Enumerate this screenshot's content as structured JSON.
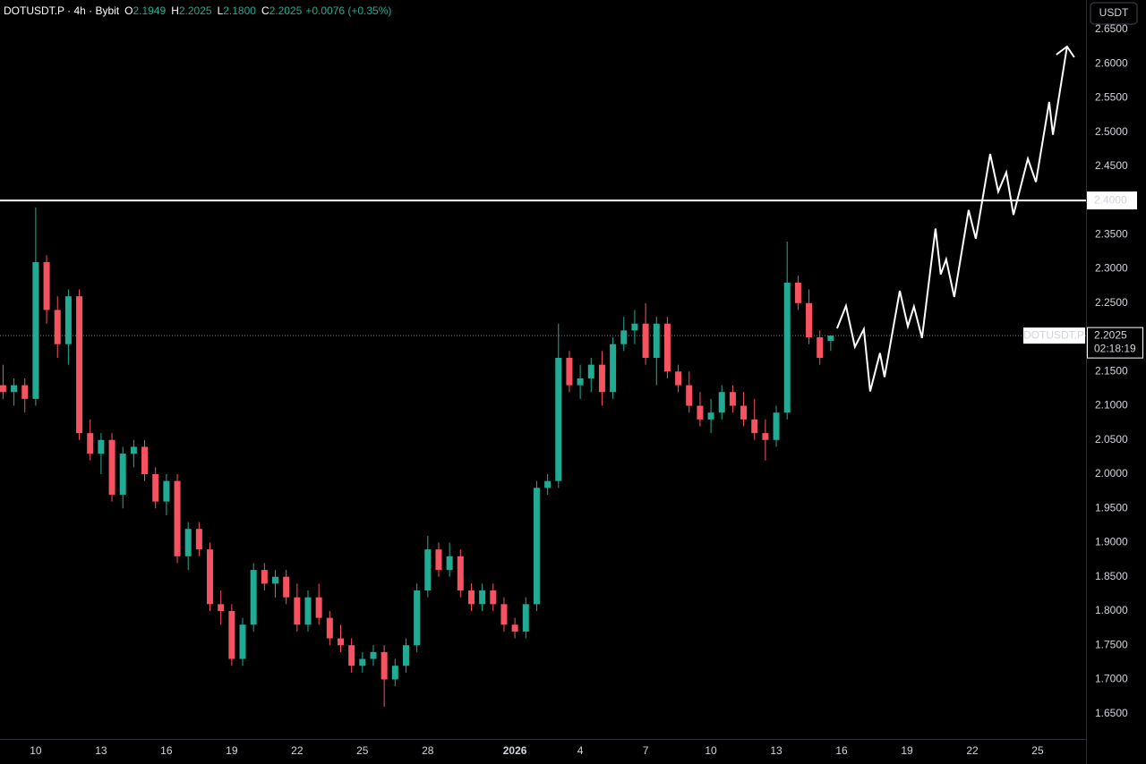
{
  "chart_data": {
    "type": "candlestick",
    "header": {
      "symbol": "DOTUSDT.P · 4h · Bybit",
      "ohlc": [
        {
          "key": "O",
          "text": "2.1949"
        },
        {
          "key": "H",
          "text": "2.2025"
        },
        {
          "key": "L",
          "text": "2.1800"
        },
        {
          "key": "C",
          "text": "2.2025"
        }
      ],
      "change": "+0.0076 (+0.35%)"
    },
    "currency_button": "USDT",
    "up_color": "#22ab94",
    "down_color": "#f7525f",
    "candles": {
      "x": [
        8.5,
        9,
        9.5,
        10,
        10.5,
        11,
        11.5,
        12,
        12.5,
        13,
        13.5,
        14,
        14.5,
        15,
        15.5,
        16,
        16.5,
        17,
        17.5,
        18,
        18.5,
        19,
        19.5,
        20,
        20.5,
        21,
        21.5,
        22,
        22.5,
        23,
        23.5,
        24,
        24.5,
        25,
        25.5,
        26,
        26.5,
        27,
        27.5,
        28,
        28.5,
        29,
        29.5,
        30,
        30.5,
        31,
        31.5,
        32,
        32.5,
        33,
        33.5,
        34,
        34.5,
        35,
        35.5,
        36,
        36.5,
        37,
        37.5,
        38,
        38.5,
        39,
        39.5,
        40,
        40.5,
        41,
        41.5,
        42,
        42.5,
        43,
        43.5,
        44,
        44.5,
        45,
        45.5,
        46,
        46.5
      ],
      "open": [
        2.13,
        2.12,
        2.13,
        2.11,
        2.31,
        2.24,
        2.19,
        2.26,
        2.06,
        2.03,
        2.05,
        1.97,
        2.03,
        2.04,
        2.0,
        1.96,
        1.99,
        1.88,
        1.92,
        1.89,
        1.81,
        1.8,
        1.73,
        1.78,
        1.86,
        1.84,
        1.85,
        1.82,
        1.78,
        1.82,
        1.79,
        1.76,
        1.75,
        1.72,
        1.73,
        1.74,
        1.7,
        1.72,
        1.75,
        1.83,
        1.89,
        1.86,
        1.88,
        1.83,
        1.81,
        1.83,
        1.81,
        1.78,
        1.77,
        1.81,
        1.98,
        1.99,
        2.17,
        2.13,
        2.14,
        2.16,
        2.12,
        2.19,
        2.21,
        2.22,
        2.17,
        2.22,
        2.15,
        2.13,
        2.1,
        2.08,
        2.09,
        2.12,
        2.1,
        2.08,
        2.06,
        2.05,
        2.09,
        2.28,
        2.25,
        2.2,
        2.1949
      ],
      "high": [
        2.16,
        2.14,
        2.14,
        2.39,
        2.32,
        2.26,
        2.27,
        2.27,
        2.08,
        2.06,
        2.06,
        2.04,
        2.05,
        2.05,
        2.01,
        2.0,
        2.0,
        1.93,
        1.93,
        1.9,
        1.83,
        1.81,
        1.79,
        1.87,
        1.87,
        1.86,
        1.86,
        1.84,
        1.83,
        1.84,
        1.8,
        1.78,
        1.76,
        1.74,
        1.75,
        1.75,
        1.73,
        1.76,
        1.84,
        1.91,
        1.9,
        1.9,
        1.89,
        1.84,
        1.84,
        1.84,
        1.82,
        1.79,
        1.82,
        1.99,
        2.0,
        2.22,
        2.18,
        2.16,
        2.17,
        2.18,
        2.2,
        2.23,
        2.24,
        2.25,
        2.23,
        2.23,
        2.16,
        2.15,
        2.12,
        2.11,
        2.13,
        2.13,
        2.12,
        2.11,
        2.08,
        2.1,
        2.34,
        2.29,
        2.27,
        2.21,
        2.2025
      ],
      "low": [
        2.11,
        2.1,
        2.09,
        2.1,
        2.22,
        2.17,
        2.16,
        2.05,
        2.02,
        2.0,
        1.96,
        1.95,
        2.01,
        1.99,
        1.95,
        1.94,
        1.87,
        1.86,
        1.88,
        1.8,
        1.78,
        1.72,
        1.72,
        1.77,
        1.83,
        1.82,
        1.81,
        1.77,
        1.77,
        1.78,
        1.75,
        1.74,
        1.71,
        1.71,
        1.72,
        1.66,
        1.69,
        1.71,
        1.74,
        1.82,
        1.85,
        1.85,
        1.82,
        1.8,
        1.8,
        1.8,
        1.77,
        1.76,
        1.76,
        1.8,
        1.97,
        1.98,
        2.12,
        2.11,
        2.12,
        2.1,
        2.11,
        2.18,
        2.19,
        2.16,
        2.13,
        2.14,
        2.12,
        2.09,
        2.07,
        2.06,
        2.08,
        2.09,
        2.07,
        2.05,
        2.02,
        2.04,
        2.08,
        2.24,
        2.19,
        2.16,
        2.18
      ],
      "close": [
        2.12,
        2.13,
        2.11,
        2.31,
        2.24,
        2.19,
        2.26,
        2.06,
        2.03,
        2.05,
        1.97,
        2.03,
        2.04,
        2.0,
        1.96,
        1.99,
        1.88,
        1.92,
        1.89,
        1.81,
        1.8,
        1.73,
        1.78,
        1.86,
        1.84,
        1.85,
        1.82,
        1.78,
        1.82,
        1.79,
        1.76,
        1.75,
        1.72,
        1.73,
        1.74,
        1.7,
        1.72,
        1.75,
        1.83,
        1.89,
        1.86,
        1.88,
        1.83,
        1.81,
        1.83,
        1.81,
        1.78,
        1.77,
        1.81,
        1.98,
        1.99,
        2.17,
        2.13,
        2.14,
        2.16,
        2.12,
        2.19,
        2.21,
        2.22,
        2.17,
        2.22,
        2.15,
        2.13,
        2.1,
        2.08,
        2.09,
        2.12,
        2.1,
        2.08,
        2.06,
        2.05,
        2.09,
        2.28,
        2.25,
        2.2,
        2.17,
        2.2025
      ]
    },
    "forecast": {
      "color": "#ffffff",
      "x": [
        46.79,
        47.2,
        47.61,
        48.02,
        48.31,
        48.76,
        48.97,
        49.67,
        50.04,
        50.32,
        50.69,
        51.31,
        51.55,
        51.8,
        52.17,
        52.83,
        53.16,
        53.82,
        54.19,
        54.56,
        54.89,
        55.55,
        55.92,
        56.53,
        56.7,
        57.35
      ],
      "y": [
        2.213,
        2.246,
        2.186,
        2.212,
        2.121,
        2.177,
        2.142,
        2.268,
        2.216,
        2.245,
        2.199,
        2.359,
        2.292,
        2.314,
        2.259,
        2.386,
        2.344,
        2.468,
        2.413,
        2.441,
        2.379,
        2.461,
        2.427,
        2.544,
        2.496,
        2.625
      ]
    },
    "level": {
      "value": 2.4,
      "label": "2.4000",
      "color": "#ffffff"
    },
    "last_price": {
      "value": 2.2025,
      "label": "2.2025",
      "symbol": "DOTUSDT.P",
      "countdown": "02:18:19"
    },
    "xlim": [
      8.36,
      58.22
    ],
    "ylim": [
      1.613,
      2.693
    ],
    "grid": false,
    "xticks": [
      10,
      13,
      16,
      19,
      22,
      25,
      28,
      {
        "value": 32,
        "label": "2026"
      },
      {
        "value": 35,
        "label": "4"
      },
      {
        "value": 38,
        "label": "7"
      },
      {
        "value": 41,
        "label": "10"
      },
      {
        "value": 44,
        "label": "13"
      },
      {
        "value": 47,
        "label": "16"
      },
      {
        "value": 50,
        "label": "19"
      },
      {
        "value": 53,
        "label": "22"
      },
      {
        "value": 56,
        "label": "25"
      }
    ],
    "yticks": [
      {
        "value": 2.65,
        "label": "2.6500"
      },
      {
        "value": 2.6,
        "label": "2.6000"
      },
      {
        "value": 2.55,
        "label": "2.5500"
      },
      {
        "value": 2.5,
        "label": "2.5000"
      },
      {
        "value": 2.45,
        "label": "2.4500"
      },
      {
        "value": 2.35,
        "label": "2.3500"
      },
      {
        "value": 2.3,
        "label": "2.3000"
      },
      {
        "value": 2.25,
        "label": "2.2500"
      },
      {
        "value": 2.15,
        "label": "2.1500"
      },
      {
        "value": 2.1,
        "label": "2.1000"
      },
      {
        "value": 2.05,
        "label": "2.0500"
      },
      {
        "value": 2.0,
        "label": "2.0000"
      },
      {
        "value": 1.95,
        "label": "1.9500"
      },
      {
        "value": 1.9,
        "label": "1.9000"
      },
      {
        "value": 1.85,
        "label": "1.8500"
      },
      {
        "value": 1.8,
        "label": "1.8000"
      },
      {
        "value": 1.75,
        "label": "1.7500"
      },
      {
        "value": 1.7,
        "label": "1.7000"
      },
      {
        "value": 1.65,
        "label": "1.6500"
      }
    ]
  }
}
